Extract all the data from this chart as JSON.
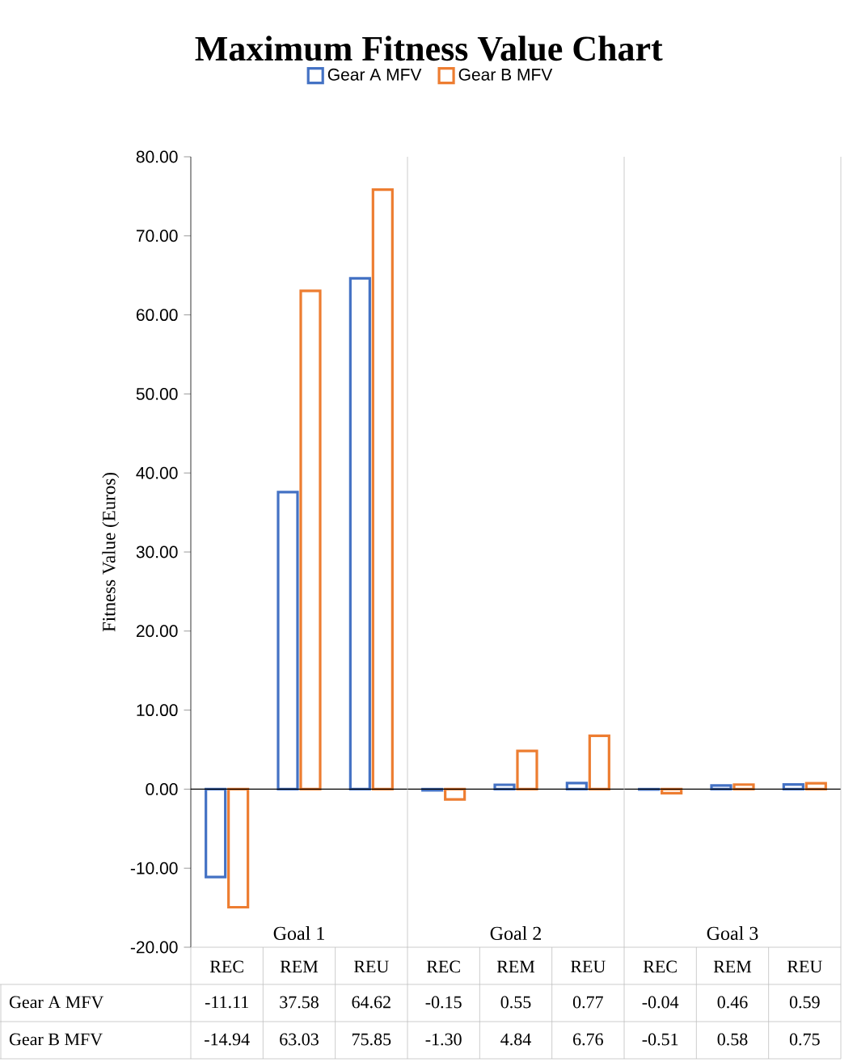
{
  "chart_data": {
    "type": "bar",
    "title": "Maximum Fitness Value Chart",
    "ylabel": "Fitness Value (Euros)",
    "categories": [
      "REC",
      "REM",
      "REU",
      "REC",
      "REM",
      "REU",
      "REC",
      "REM",
      "REU"
    ],
    "annotations": [
      "Goal 1",
      "Goal 2",
      "Goal 3"
    ],
    "series": [
      {
        "name": "Gear A MFV",
        "color": "#4472c4",
        "values": [
          -11.11,
          37.58,
          64.62,
          -0.15,
          0.55,
          0.77,
          -0.04,
          0.46,
          0.59
        ],
        "value_labels": [
          "-11.11",
          "37.58",
          "64.62",
          "-0.15",
          "0.55",
          "0.77",
          "-0.04",
          "0.46",
          "0.59"
        ]
      },
      {
        "name": "Gear B MFV",
        "color": "#ed7d31",
        "values": [
          -14.94,
          63.03,
          75.85,
          -1.3,
          4.84,
          6.76,
          -0.51,
          0.58,
          0.75
        ],
        "value_labels": [
          "-14.94",
          "63.03",
          "75.85",
          "-1.30",
          "4.84",
          "6.76",
          "-0.51",
          "0.58",
          "0.75"
        ]
      }
    ],
    "ylim": [
      -20,
      80
    ],
    "yticks": [
      {
        "value": -20,
        "label": "-20.00"
      },
      {
        "value": -10,
        "label": "-10.00"
      },
      {
        "value": 0,
        "label": "0.00"
      },
      {
        "value": 10,
        "label": "10.00"
      },
      {
        "value": 20,
        "label": "20.00"
      },
      {
        "value": 30,
        "label": "30.00"
      },
      {
        "value": 40,
        "label": "40.00"
      },
      {
        "value": 50,
        "label": "50.00"
      },
      {
        "value": 60,
        "label": "60.00"
      },
      {
        "value": 70,
        "label": "70.00"
      },
      {
        "value": 80,
        "label": "80.00"
      }
    ],
    "legend": "top"
  }
}
